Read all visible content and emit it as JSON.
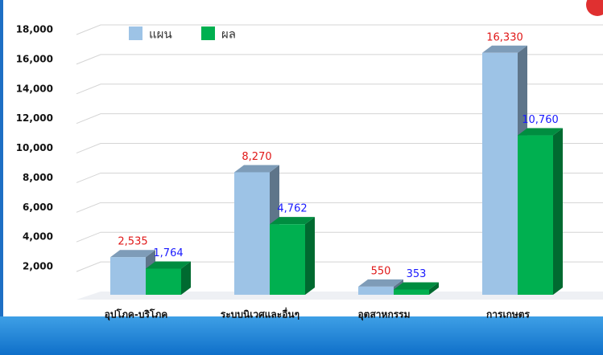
{
  "chart_data": {
    "type": "bar3d",
    "categories": [
      "อุปโภค-บริโภค",
      "ระบบนิเวศและอื่นๆ",
      "อุตสาหกรรม",
      "การเกษตร"
    ],
    "series": [
      {
        "name": "แผน",
        "color": "#9dc3e6",
        "values": [
          2535,
          8270,
          550,
          16330
        ],
        "value_labels": [
          "2,535",
          "8,270",
          "550",
          "16,330"
        ]
      },
      {
        "name": "ผล",
        "color": "#00b050",
        "values": [
          1764,
          4762,
          353,
          10760
        ],
        "value_labels": [
          "1,764",
          "4,762",
          "353",
          "10,760"
        ]
      }
    ],
    "ylim": [
      0,
      18000
    ],
    "yticks": [
      {
        "value": 2000,
        "label": "2,000"
      },
      {
        "value": 4000,
        "label": "4,000"
      },
      {
        "value": 6000,
        "label": "6,000"
      },
      {
        "value": 8000,
        "label": "8,000"
      },
      {
        "value": 10000,
        "label": "10,000"
      },
      {
        "value": 12000,
        "label": "12,000"
      },
      {
        "value": 14000,
        "label": "14,000"
      },
      {
        "value": 16000,
        "label": "16,000"
      },
      {
        "value": 18000,
        "label": "18,000"
      }
    ],
    "grid": true
  }
}
